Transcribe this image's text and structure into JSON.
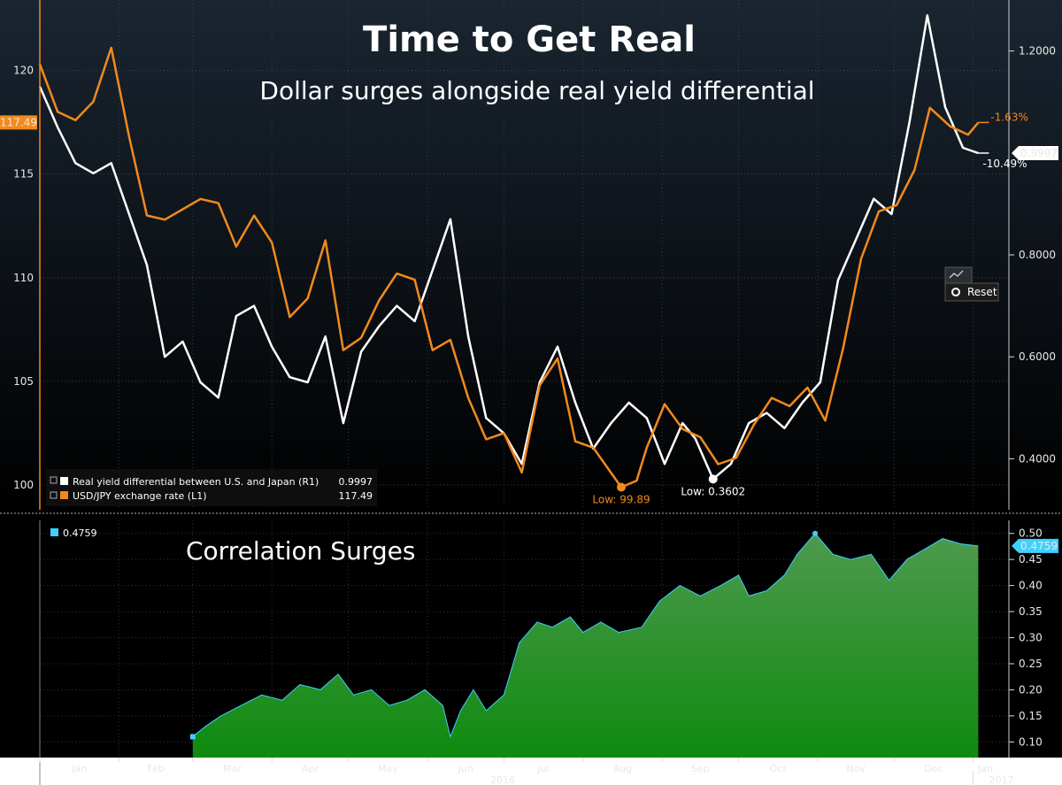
{
  "title": "Time to Get Real",
  "subtitle": "Dollar surges alongside real yield differential",
  "reset_label": "Reset",
  "colors": {
    "usdjpy": "#f28a1c",
    "real_yield": "#ffffff",
    "correlation_line": "#3fd0ff",
    "correlation_fill": "#1f8c1f",
    "background": "#000000",
    "top_panel_bg": "#0d1722",
    "grid": "#444444"
  },
  "chart_data": [
    {
      "type": "line",
      "title": "Time to Get Real",
      "subtitle": "Dollar surges alongside real yield differential",
      "x_start": "2016-01-01",
      "x_end": "2017-01-15",
      "month_labels": [
        "Jan",
        "Feb",
        "Mar",
        "Apr",
        "May",
        "Jun",
        "Jul",
        "Aug",
        "Sep",
        "Oct",
        "Nov",
        "Dec",
        "Jan"
      ],
      "year_labels": [
        "2016",
        "2017"
      ],
      "left_axis": {
        "ticks": [
          "100",
          "105",
          "110",
          "115",
          "120"
        ],
        "ylim": [
          98.8,
          123.4
        ]
      },
      "right_axis": {
        "ticks": [
          "0.4000",
          "0.6000",
          "0.8000",
          "1.2000"
        ],
        "ylim": [
          0.3,
          1.3
        ]
      },
      "grid": true,
      "series": [
        {
          "name": "USD/JPY exchange rate (L1)",
          "axis": "left",
          "last_value": "117.49",
          "change_label": "-1.63%",
          "low_label": "Low: 99.89",
          "low_date": "2016-08-16",
          "low_value": 99.89,
          "points": [
            [
              "2016-01-01",
              120.3
            ],
            [
              "2016-01-08",
              118.0
            ],
            [
              "2016-01-15",
              117.6
            ],
            [
              "2016-01-22",
              118.5
            ],
            [
              "2016-01-29",
              121.1
            ],
            [
              "2016-02-05",
              116.8
            ],
            [
              "2016-02-12",
              113.0
            ],
            [
              "2016-02-19",
              112.8
            ],
            [
              "2016-02-26",
              113.3
            ],
            [
              "2016-03-04",
              113.8
            ],
            [
              "2016-03-11",
              113.6
            ],
            [
              "2016-03-18",
              111.5
            ],
            [
              "2016-03-25",
              113.0
            ],
            [
              "2016-04-01",
              111.7
            ],
            [
              "2016-04-08",
              108.1
            ],
            [
              "2016-04-15",
              109.0
            ],
            [
              "2016-04-22",
              111.8
            ],
            [
              "2016-04-29",
              106.5
            ],
            [
              "2016-05-06",
              107.1
            ],
            [
              "2016-05-13",
              108.9
            ],
            [
              "2016-05-20",
              110.2
            ],
            [
              "2016-05-27",
              109.9
            ],
            [
              "2016-06-03",
              106.5
            ],
            [
              "2016-06-10",
              107.0
            ],
            [
              "2016-06-17",
              104.2
            ],
            [
              "2016-06-24",
              102.2
            ],
            [
              "2016-07-01",
              102.5
            ],
            [
              "2016-07-08",
              100.6
            ],
            [
              "2016-07-15",
              104.8
            ],
            [
              "2016-07-22",
              106.1
            ],
            [
              "2016-07-29",
              102.1
            ],
            [
              "2016-08-05",
              101.8
            ],
            [
              "2016-08-16",
              99.89
            ],
            [
              "2016-08-22",
              100.2
            ],
            [
              "2016-08-26",
              101.8
            ],
            [
              "2016-09-02",
              103.9
            ],
            [
              "2016-09-09",
              102.7
            ],
            [
              "2016-09-16",
              102.3
            ],
            [
              "2016-09-23",
              101.0
            ],
            [
              "2016-09-30",
              101.3
            ],
            [
              "2016-10-07",
              102.9
            ],
            [
              "2016-10-14",
              104.2
            ],
            [
              "2016-10-21",
              103.8
            ],
            [
              "2016-10-28",
              104.7
            ],
            [
              "2016-11-04",
              103.1
            ],
            [
              "2016-11-11",
              106.6
            ],
            [
              "2016-11-18",
              110.9
            ],
            [
              "2016-11-25",
              113.2
            ],
            [
              "2016-12-02",
              113.5
            ],
            [
              "2016-12-09",
              115.2
            ],
            [
              "2016-12-15",
              118.2
            ],
            [
              "2016-12-23",
              117.3
            ],
            [
              "2016-12-30",
              116.9
            ],
            [
              "2017-01-03",
              117.49
            ]
          ]
        },
        {
          "name": "Real yield differential between U.S. and Japan (R1)",
          "axis": "right",
          "last_value": "0.9997",
          "change_label": "-10.49%",
          "low_label": "Low: 0.3602",
          "low_date": "2016-09-21",
          "low_value": 0.3602,
          "points": [
            [
              "2016-01-01",
              1.13
            ],
            [
              "2016-01-08",
              1.05
            ],
            [
              "2016-01-15",
              0.98
            ],
            [
              "2016-01-22",
              0.96
            ],
            [
              "2016-01-29",
              0.98
            ],
            [
              "2016-02-05",
              0.88
            ],
            [
              "2016-02-12",
              0.78
            ],
            [
              "2016-02-19",
              0.6
            ],
            [
              "2016-02-26",
              0.63
            ],
            [
              "2016-03-04",
              0.55
            ],
            [
              "2016-03-11",
              0.52
            ],
            [
              "2016-03-18",
              0.68
            ],
            [
              "2016-03-25",
              0.7
            ],
            [
              "2016-04-01",
              0.62
            ],
            [
              "2016-04-08",
              0.56
            ],
            [
              "2016-04-15",
              0.55
            ],
            [
              "2016-04-22",
              0.64
            ],
            [
              "2016-04-29",
              0.47
            ],
            [
              "2016-05-06",
              0.61
            ],
            [
              "2016-05-13",
              0.66
            ],
            [
              "2016-05-20",
              0.7
            ],
            [
              "2016-05-27",
              0.67
            ],
            [
              "2016-06-03",
              0.77
            ],
            [
              "2016-06-10",
              0.87
            ],
            [
              "2016-06-17",
              0.64
            ],
            [
              "2016-06-24",
              0.48
            ],
            [
              "2016-07-01",
              0.45
            ],
            [
              "2016-07-08",
              0.39
            ],
            [
              "2016-07-15",
              0.55
            ],
            [
              "2016-07-22",
              0.62
            ],
            [
              "2016-07-29",
              0.51
            ],
            [
              "2016-08-05",
              0.42
            ],
            [
              "2016-08-12",
              0.47
            ],
            [
              "2016-08-19",
              0.51
            ],
            [
              "2016-08-26",
              0.48
            ],
            [
              "2016-09-02",
              0.39
            ],
            [
              "2016-09-09",
              0.47
            ],
            [
              "2016-09-14",
              0.44
            ],
            [
              "2016-09-21",
              0.3602
            ],
            [
              "2016-09-28",
              0.39
            ],
            [
              "2016-10-05",
              0.47
            ],
            [
              "2016-10-12",
              0.49
            ],
            [
              "2016-10-19",
              0.46
            ],
            [
              "2016-10-26",
              0.51
            ],
            [
              "2016-11-02",
              0.55
            ],
            [
              "2016-11-09",
              0.75
            ],
            [
              "2016-11-16",
              0.83
            ],
            [
              "2016-11-23",
              0.91
            ],
            [
              "2016-11-30",
              0.88
            ],
            [
              "2016-12-07",
              1.06
            ],
            [
              "2016-12-14",
              1.27
            ],
            [
              "2016-12-21",
              1.09
            ],
            [
              "2016-12-28",
              1.01
            ],
            [
              "2017-01-03",
              0.9997
            ]
          ]
        }
      ]
    },
    {
      "type": "area",
      "title": "Correlation Surges",
      "x_start": "2016-01-01",
      "x_end": "2017-01-15",
      "ylim": [
        0.07,
        0.525
      ],
      "y_ticks": [
        "0.10",
        "0.15",
        "0.20",
        "0.25",
        "0.30",
        "0.35",
        "0.40",
        "0.45",
        "0.50"
      ],
      "grid": true,
      "series": [
        {
          "name": "",
          "last_value": "0.4759",
          "points": [
            [
              "2016-03-01",
              0.11
            ],
            [
              "2016-03-06",
              0.13
            ],
            [
              "2016-03-12",
              0.15
            ],
            [
              "2016-03-20",
              0.17
            ],
            [
              "2016-03-28",
              0.19
            ],
            [
              "2016-04-05",
              0.18
            ],
            [
              "2016-04-12",
              0.21
            ],
            [
              "2016-04-20",
              0.2
            ],
            [
              "2016-04-27",
              0.23
            ],
            [
              "2016-05-03",
              0.19
            ],
            [
              "2016-05-10",
              0.2
            ],
            [
              "2016-05-17",
              0.17
            ],
            [
              "2016-05-24",
              0.18
            ],
            [
              "2016-05-31",
              0.2
            ],
            [
              "2016-06-07",
              0.17
            ],
            [
              "2016-06-10",
              0.11
            ],
            [
              "2016-06-14",
              0.16
            ],
            [
              "2016-06-19",
              0.2
            ],
            [
              "2016-06-24",
              0.16
            ],
            [
              "2016-07-01",
              0.19
            ],
            [
              "2016-07-07",
              0.29
            ],
            [
              "2016-07-14",
              0.33
            ],
            [
              "2016-07-20",
              0.32
            ],
            [
              "2016-07-27",
              0.34
            ],
            [
              "2016-08-01",
              0.31
            ],
            [
              "2016-08-08",
              0.33
            ],
            [
              "2016-08-15",
              0.31
            ],
            [
              "2016-08-24",
              0.32
            ],
            [
              "2016-08-31",
              0.37
            ],
            [
              "2016-09-08",
              0.4
            ],
            [
              "2016-09-16",
              0.38
            ],
            [
              "2016-09-24",
              0.4
            ],
            [
              "2016-10-01",
              0.42
            ],
            [
              "2016-10-05",
              0.38
            ],
            [
              "2016-10-12",
              0.39
            ],
            [
              "2016-10-19",
              0.42
            ],
            [
              "2016-10-24",
              0.46
            ],
            [
              "2016-10-31",
              0.5
            ],
            [
              "2016-11-07",
              0.46
            ],
            [
              "2016-11-14",
              0.45
            ],
            [
              "2016-11-22",
              0.46
            ],
            [
              "2016-11-29",
              0.41
            ],
            [
              "2016-12-06",
              0.45
            ],
            [
              "2016-12-13",
              0.47
            ],
            [
              "2016-12-20",
              0.49
            ],
            [
              "2016-12-27",
              0.48
            ],
            [
              "2017-01-03",
              0.4759
            ]
          ]
        }
      ]
    }
  ]
}
